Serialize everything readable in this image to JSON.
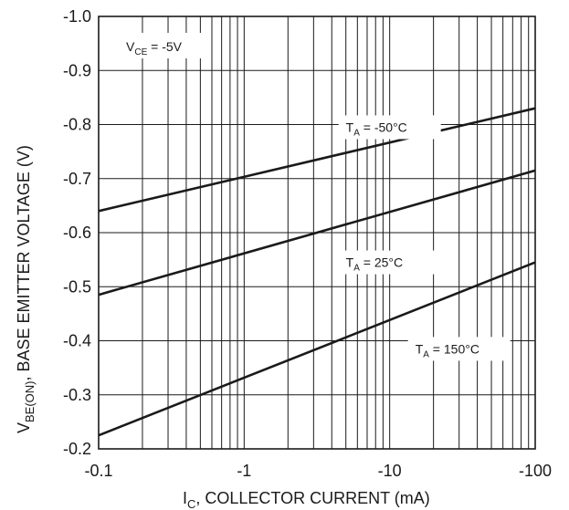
{
  "chart_data": {
    "type": "line",
    "x_scale": "log",
    "xlim": [
      -0.1,
      -100
    ],
    "ylim": [
      -0.2,
      -1.0
    ],
    "x_ticks": [
      "-0.1",
      "-1",
      "-10",
      "-100"
    ],
    "y_ticks": [
      "-1.0",
      "-0.9",
      "-0.8",
      "-0.7",
      "-0.6",
      "-0.5",
      "-0.4",
      "-0.3",
      "-0.2"
    ],
    "xlabel": {
      "main": "I",
      "sub": "C",
      "rest": ", COLLECTOR CURRENT (mA)"
    },
    "ylabel": {
      "main": "V",
      "sub": "BE(ON)",
      "rest": ", BASE EMITTER VOLTAGE (V)"
    },
    "grid": true,
    "annotation": {
      "main": "V",
      "sub": "CE",
      "rest": " = -5V"
    },
    "series": [
      {
        "label_main": "T",
        "label_sub": "A",
        "label_rest": " = -50°C",
        "x": [
          -0.1,
          -100
        ],
        "y": [
          -0.64,
          -0.83
        ]
      },
      {
        "label_main": "T",
        "label_sub": "A",
        "label_rest": " = 25°C",
        "x": [
          -0.1,
          -100
        ],
        "y": [
          -0.485,
          -0.715
        ]
      },
      {
        "label_main": "T",
        "label_sub": "A",
        "label_rest": " = 150°C",
        "x": [
          -0.1,
          -100
        ],
        "y": [
          -0.225,
          -0.545
        ]
      }
    ]
  }
}
